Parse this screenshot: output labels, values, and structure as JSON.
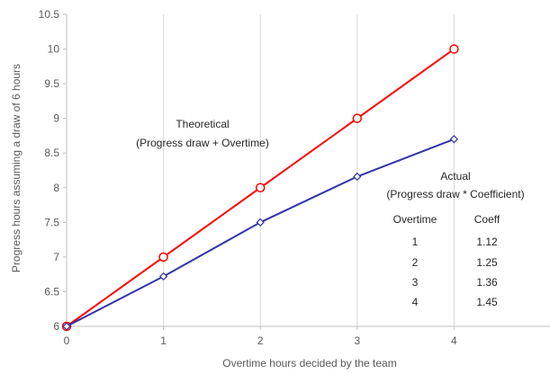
{
  "chart_data": {
    "type": "line",
    "xlabel": "Overtime hours decided by the team",
    "ylabel": "Progress hours assuming a draw of 6 hours",
    "xlim": [
      0,
      5
    ],
    "ylim": [
      6,
      10.5
    ],
    "x_ticks": [
      "0",
      "1",
      "2",
      "3",
      "4"
    ],
    "y_ticks": [
      "6",
      "6.5",
      "7",
      "7.5",
      "8",
      "8.5",
      "9",
      "9.5",
      "10",
      "10.5"
    ],
    "grid": "vertical",
    "series": [
      {
        "color": "#ff0000",
        "marker": "circle",
        "x": [
          0,
          1,
          2,
          3,
          4
        ],
        "y": [
          6,
          7,
          8,
          9,
          10
        ]
      },
      {
        "color": "#3333aa",
        "marker": "diamond",
        "x": [
          0,
          1,
          2,
          3,
          4
        ],
        "y": [
          6,
          6.72,
          7.5,
          8.16,
          8.7
        ]
      }
    ],
    "annotations": {
      "theoretical_line1": "Theoretical",
      "theoretical_line2": "(Progress draw + Overtime)",
      "actual_line1": "Actual",
      "actual_line2": "(Progress draw * Coefficient)"
    },
    "table": {
      "headers": [
        "Overtime",
        "Coeff"
      ],
      "rows": [
        [
          "1",
          "1.12"
        ],
        [
          "2",
          "1.25"
        ],
        [
          "3",
          "1.36"
        ],
        [
          "4",
          "1.45"
        ]
      ]
    }
  }
}
